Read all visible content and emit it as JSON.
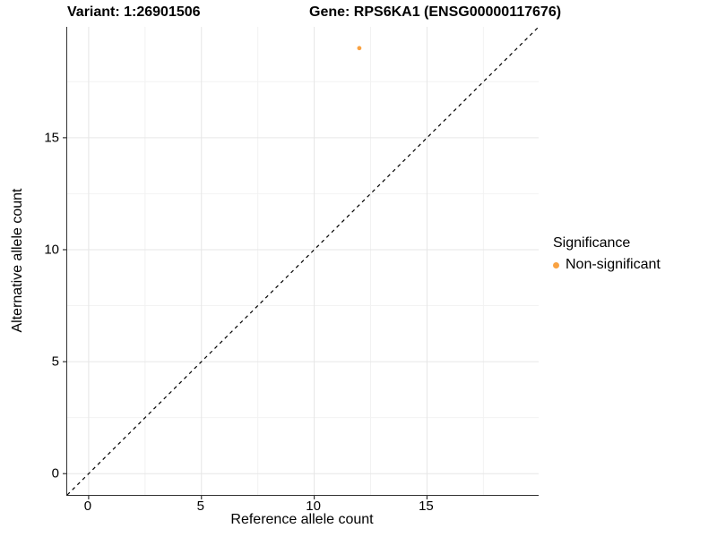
{
  "titles": {
    "variant": "Variant: 1:26901506",
    "gene": "Gene: RPS6KA1 (ENSG00000117676)"
  },
  "legend": {
    "title": "Significance",
    "items": [
      {
        "label": "Non-significant",
        "color": "#F9A242"
      }
    ]
  },
  "colors": {
    "point": "#F9A242",
    "grid_major": "#e6e6e6",
    "grid_minor": "#f2f2f2",
    "axis_line": "#333333",
    "reference_line": "#000000",
    "background": "#ffffff"
  },
  "chart_data": {
    "type": "scatter",
    "title": "Variant: 1:26901506 | Gene: RPS6KA1 (ENSG00000117676)",
    "xlabel": "Reference allele count",
    "ylabel": "Alternative allele count",
    "xlim": [
      -0.95,
      19.95
    ],
    "ylim": [
      -0.95,
      19.95
    ],
    "x_ticks": [
      0,
      5,
      10,
      15
    ],
    "y_ticks": [
      0,
      5,
      10,
      15
    ],
    "x_minor_ticks": [
      2.5,
      7.5,
      12.5,
      17.5
    ],
    "y_minor_ticks": [
      2.5,
      7.5,
      12.5,
      17.5
    ],
    "grid": true,
    "legend_position": "right",
    "series": [
      {
        "name": "Non-significant",
        "color": "#F9A242",
        "point_radius": 2.4,
        "points": [
          {
            "x": 12,
            "y": 19
          }
        ]
      }
    ],
    "reference_line": {
      "type": "identity",
      "style": "dashed",
      "from": [
        -0.95,
        -0.95
      ],
      "to": [
        19.95,
        19.95
      ]
    }
  }
}
